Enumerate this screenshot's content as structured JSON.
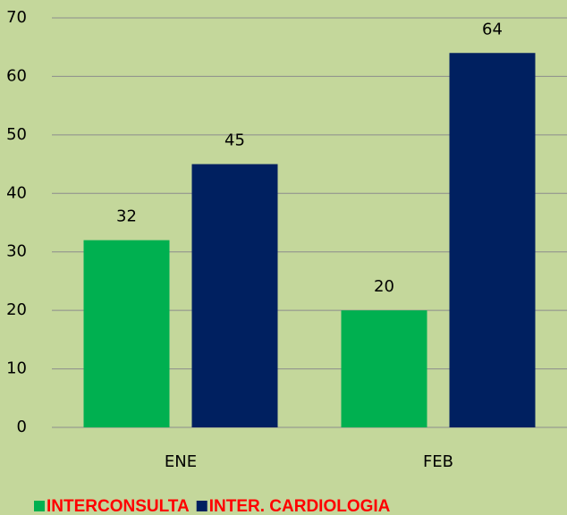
{
  "chart_data": {
    "type": "bar",
    "categories": [
      "ENE",
      "FEB"
    ],
    "series": [
      {
        "name": "INTERCONSULTA",
        "color": "#00b050",
        "values": [
          32,
          20
        ]
      },
      {
        "name": "INTER. CARDIOLOGIA",
        "color": "#002060",
        "values": [
          45,
          64
        ]
      }
    ],
    "ylim": [
      0,
      70
    ],
    "yticks": [
      0,
      10,
      20,
      30,
      40,
      50,
      60,
      70
    ],
    "grid": true,
    "legend": "bottom"
  }
}
